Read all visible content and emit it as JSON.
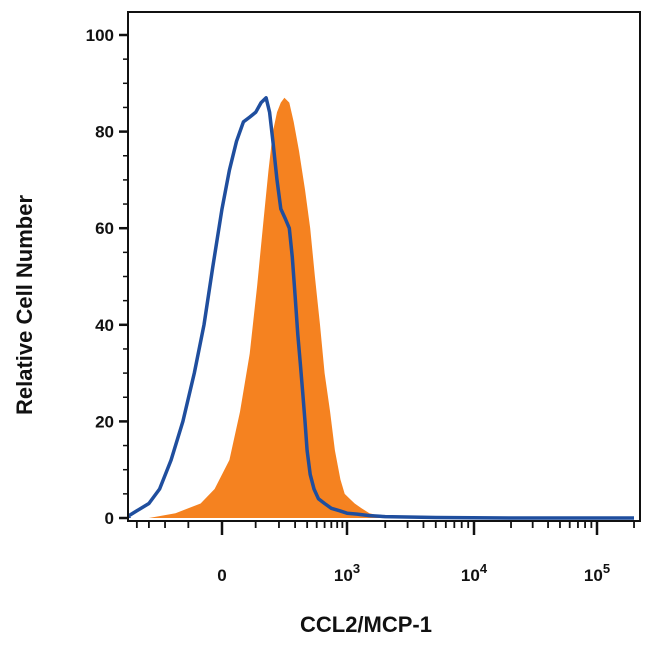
{
  "chart_data": {
    "type": "area",
    "xlabel": "CCL2/MCP-1",
    "ylabel": "Relative Cell Number",
    "x_scale": "biexponential",
    "ylim": [
      0,
      100
    ],
    "y_ticks": [
      {
        "value": 0,
        "label": "0"
      },
      {
        "value": 20,
        "label": "20"
      },
      {
        "value": 40,
        "label": "40"
      },
      {
        "value": 60,
        "label": "60"
      },
      {
        "value": 80,
        "label": "80"
      },
      {
        "value": 100,
        "label": "100"
      }
    ],
    "x_ticks": [
      {
        "value": 0,
        "base": "0",
        "exp": ""
      },
      {
        "value": 1000,
        "base": "10",
        "exp": "3"
      },
      {
        "value": 10000,
        "base": "10",
        "exp": "4"
      },
      {
        "value": 100000,
        "base": "10",
        "exp": "5"
      }
    ],
    "grid": false,
    "colors": {
      "filled": "#f58220",
      "outline": "#1f4e9e",
      "axis": "#111111"
    },
    "series": [
      {
        "style": "filled",
        "points": [
          [
            -300,
            0
          ],
          [
            -150,
            1
          ],
          [
            -60,
            3
          ],
          [
            -20,
            6
          ],
          [
            20,
            12
          ],
          [
            50,
            22
          ],
          [
            80,
            34
          ],
          [
            105,
            48
          ],
          [
            130,
            62
          ],
          [
            150,
            72
          ],
          [
            170,
            80
          ],
          [
            190,
            84
          ],
          [
            210,
            86
          ],
          [
            230,
            87
          ],
          [
            260,
            86
          ],
          [
            290,
            82
          ],
          [
            330,
            76
          ],
          [
            380,
            68
          ],
          [
            430,
            60
          ],
          [
            480,
            50
          ],
          [
            540,
            40
          ],
          [
            600,
            30
          ],
          [
            680,
            22
          ],
          [
            760,
            14
          ],
          [
            860,
            8
          ],
          [
            950,
            5
          ],
          [
            1050,
            4
          ],
          [
            1150,
            3
          ],
          [
            1300,
            2
          ],
          [
            1500,
            1
          ],
          [
            1800,
            0.5
          ],
          [
            2200,
            0.3
          ],
          [
            3000,
            0
          ]
        ]
      },
      {
        "style": "outline",
        "points": [
          [
            -650,
            0
          ],
          [
            -500,
            0.5
          ],
          [
            -400,
            1.5
          ],
          [
            -300,
            3
          ],
          [
            -230,
            6
          ],
          [
            -170,
            12
          ],
          [
            -120,
            20
          ],
          [
            -80,
            30
          ],
          [
            -50,
            40
          ],
          [
            -25,
            52
          ],
          [
            0,
            64
          ],
          [
            20,
            72
          ],
          [
            40,
            78
          ],
          [
            60,
            82
          ],
          [
            80,
            83
          ],
          [
            100,
            84
          ],
          [
            120,
            86
          ],
          [
            140,
            87
          ],
          [
            155,
            84
          ],
          [
            170,
            78
          ],
          [
            190,
            70
          ],
          [
            210,
            64
          ],
          [
            235,
            62
          ],
          [
            260,
            60
          ],
          [
            280,
            54
          ],
          [
            300,
            46
          ],
          [
            320,
            38
          ],
          [
            340,
            32
          ],
          [
            360,
            26
          ],
          [
            380,
            20
          ],
          [
            400,
            14
          ],
          [
            430,
            9
          ],
          [
            470,
            6
          ],
          [
            520,
            4
          ],
          [
            600,
            3
          ],
          [
            700,
            2
          ],
          [
            850,
            1.5
          ],
          [
            1000,
            1
          ],
          [
            1200,
            0.8
          ],
          [
            1500,
            0.5
          ],
          [
            2000,
            0.3
          ],
          [
            5000,
            0.1
          ],
          [
            20000,
            0
          ],
          [
            100000,
            0
          ],
          [
            200000,
            0
          ]
        ]
      }
    ]
  }
}
